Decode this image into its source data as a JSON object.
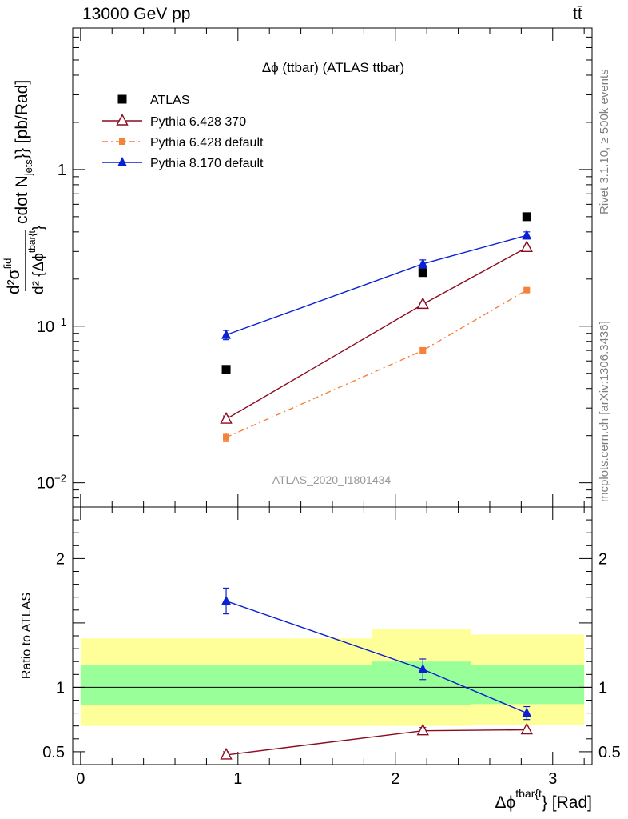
{
  "header": {
    "left": "13000 GeV pp",
    "right": "tt̄"
  },
  "side": {
    "rivet": "Rivet 3.1.10, ≥ 500k events",
    "source": "mcplots.cern.ch [arXiv:1306.3436]"
  },
  "plot_title": "Δϕ (ttbar) (ATLAS ttbar)",
  "watermark": "ATLAS_2020_I1801434",
  "colors": {
    "atlas": "#000000",
    "py6_370": "#8b0b1f",
    "py6_default": "#f5813a",
    "py8_default": "#0a20d2",
    "band_outer": "#ffff99",
    "band_inner": "#99ff99"
  },
  "chart_data": [
    {
      "type": "scatter",
      "title": "Δϕ (ttbar) (ATLAS ttbar)",
      "ylabel_parts": {
        "num": "d²σ",
        "num_sup": "fid",
        "den": "d² {Δϕ",
        "den_sup": "tbar{t",
        "den_close": "}",
        "tail": "cdot N",
        "tail_sub": "jets",
        "tail_close": "}} [pb/Rad]"
      },
      "y_scale": "log",
      "ylim": [
        0.007,
        8
      ],
      "xlim": [
        -0.05,
        3.25
      ],
      "y_tick_labels": [
        {
          "value": 1,
          "label": "1"
        },
        {
          "value": 0.1,
          "label": "10",
          "exp": "−1"
        },
        {
          "value": 0.01,
          "label": "10",
          "exp": "−2"
        }
      ],
      "legend_position": "top-left",
      "series": [
        {
          "name": "ATLAS",
          "marker": "square",
          "x": [
            0.925,
            2.175,
            2.835
          ],
          "y": [
            0.053,
            0.22,
            0.5
          ]
        },
        {
          "name": "Pythia 6.428 370",
          "marker": "open-triangle",
          "x": [
            0.925,
            2.175,
            2.835
          ],
          "y": [
            0.0255,
            0.138,
            0.318
          ],
          "err": [
            0.0012,
            0.004,
            0.008
          ]
        },
        {
          "name": "Pythia 6.428 default",
          "marker": "small-square",
          "line": "dashdot",
          "x": [
            0.925,
            2.175,
            2.835
          ],
          "y": [
            0.0195,
            0.07,
            0.17
          ],
          "err": [
            0.0012,
            0.003,
            0.004
          ]
        },
        {
          "name": "Pythia 8.170 default",
          "marker": "triangle",
          "x": [
            0.925,
            2.175,
            2.835
          ],
          "y": [
            0.088,
            0.25,
            0.38
          ],
          "err": [
            0.006,
            0.015,
            0.02
          ]
        }
      ]
    },
    {
      "type": "scatter",
      "ylabel": "Ratio to ATLAS",
      "xlabel_parts": {
        "base": "Δϕ",
        "sup": "tbar{t",
        "tail": "} [Rad]"
      },
      "ylim": [
        0.4,
        2.4
      ],
      "xlim": [
        -0.05,
        3.25
      ],
      "y_tick_labels": [
        {
          "value": 0.5,
          "label": "0.5"
        },
        {
          "value": 1,
          "label": "1"
        },
        {
          "value": 2,
          "label": "2"
        }
      ],
      "x_tick_labels": [
        {
          "value": 0,
          "label": "0"
        },
        {
          "value": 1,
          "label": "1"
        },
        {
          "value": 2,
          "label": "2"
        },
        {
          "value": 3,
          "label": "3"
        }
      ],
      "bands": [
        {
          "x0": 0.0,
          "x1": 1.85,
          "outer": [
            0.7,
            1.38
          ],
          "inner": [
            0.86,
            1.17
          ]
        },
        {
          "x0": 1.85,
          "x1": 2.48,
          "outer": [
            0.7,
            1.45
          ],
          "inner": [
            0.86,
            1.2
          ]
        },
        {
          "x0": 2.48,
          "x1": 3.2,
          "outer": [
            0.71,
            1.41
          ],
          "inner": [
            0.87,
            1.17
          ]
        }
      ],
      "series": [
        {
          "name": "Pythia 6.428 370",
          "marker": "open-triangle",
          "x": [
            0.925,
            2.175,
            2.835
          ],
          "y": [
            0.475,
            0.663,
            0.67
          ],
          "err": [
            0.025,
            0.025,
            0.0
          ]
        },
        {
          "name": "Pythia 8.170 default",
          "marker": "triangle",
          "x": [
            0.925,
            2.175,
            2.835
          ],
          "y": [
            1.67,
            1.14,
            0.8
          ],
          "err": [
            0.1,
            0.08,
            0.05
          ]
        }
      ]
    }
  ]
}
